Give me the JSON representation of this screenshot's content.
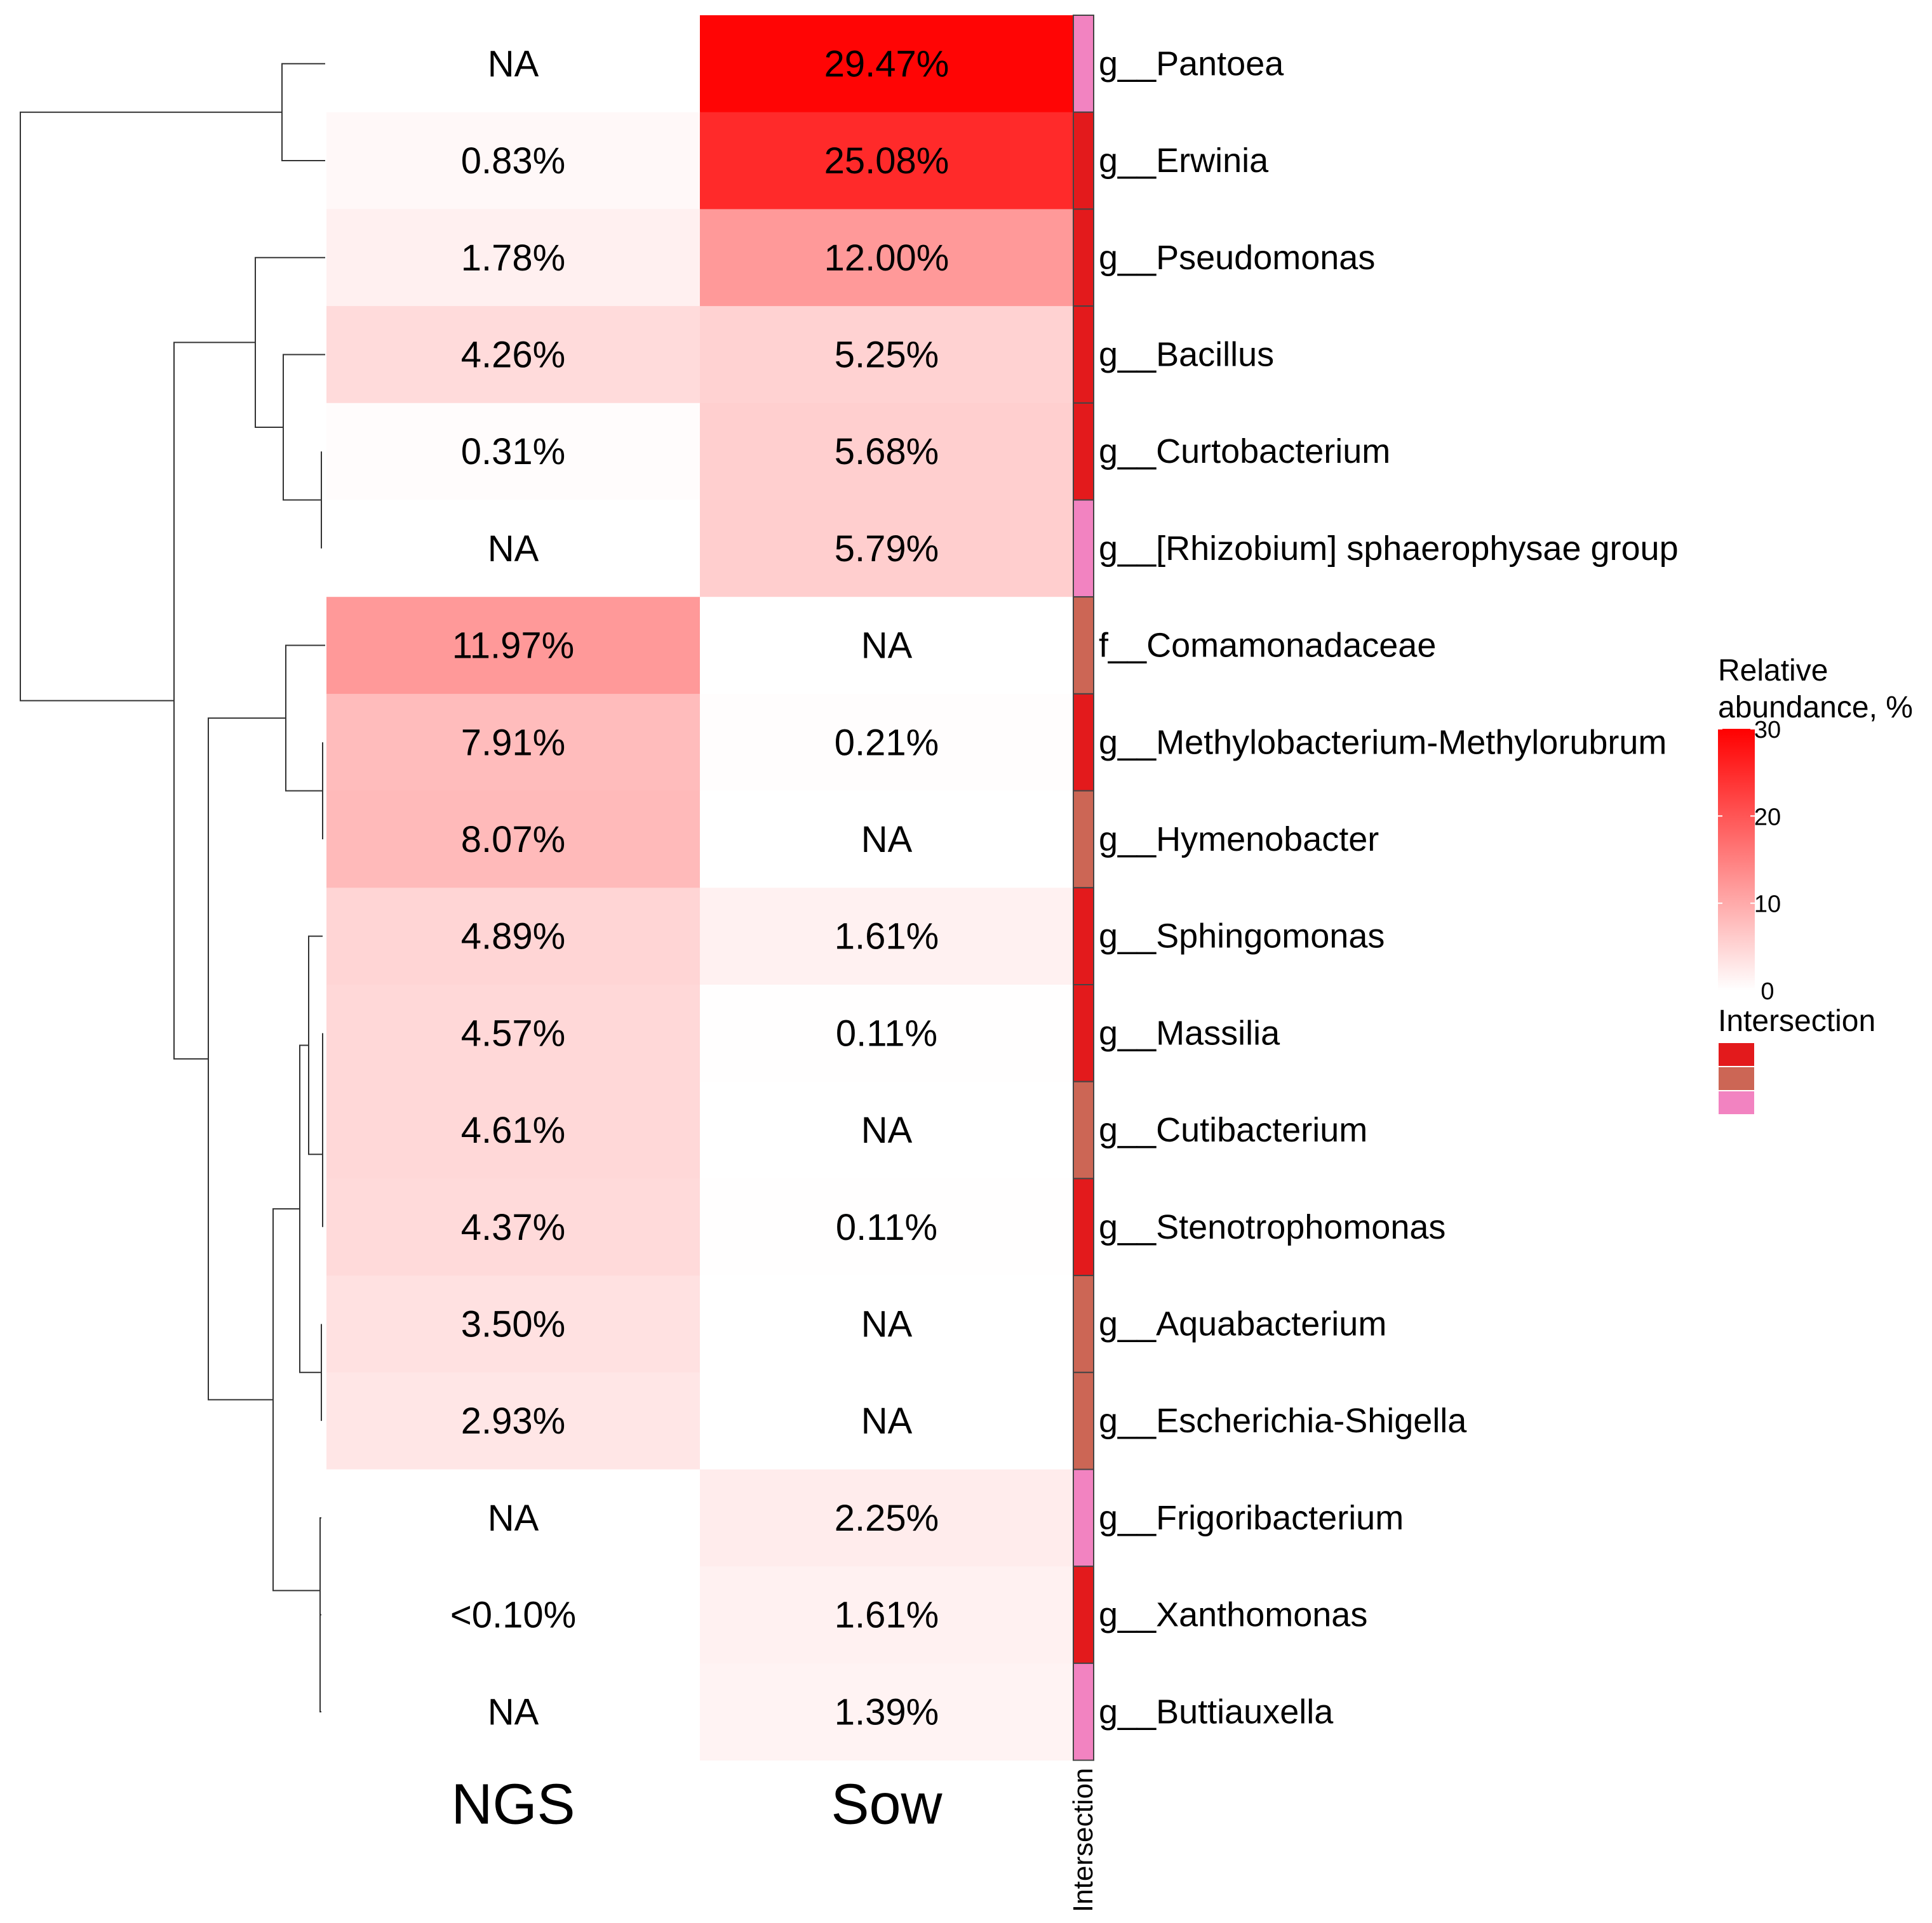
{
  "chart_data": {
    "type": "heatmap",
    "columns": [
      "NGS",
      "Sow"
    ],
    "rows": [
      "g__Pantoea",
      "g__Erwinia",
      "g__Pseudomonas",
      "g__Bacillus",
      "g__Curtobacterium",
      "g__[Rhizobium] sphaerophysae group",
      "f__Comamonadaceae",
      "g__Methylobacterium-Methylorubrum",
      "g__Hymenobacter",
      "g__Sphingomonas",
      "g__Massilia",
      "g__Cutibacterium",
      "g__Stenotrophomonas",
      "g__Aquabacterium",
      "g__Escherichia-Shigella",
      "g__Frigoribacterium",
      "g__Xanthomonas",
      "g__Buttiauxella"
    ],
    "values": [
      [
        null,
        29.47
      ],
      [
        0.83,
        25.08
      ],
      [
        1.78,
        12.0
      ],
      [
        4.26,
        5.25
      ],
      [
        0.31,
        5.68
      ],
      [
        null,
        5.79
      ],
      [
        11.97,
        null
      ],
      [
        7.91,
        0.21
      ],
      [
        8.07,
        null
      ],
      [
        4.89,
        1.61
      ],
      [
        4.57,
        0.11
      ],
      [
        4.61,
        null
      ],
      [
        4.37,
        0.11
      ],
      [
        3.5,
        null
      ],
      [
        2.93,
        null
      ],
      [
        null,
        2.25
      ],
      [
        0.05,
        1.61
      ],
      [
        null,
        1.39
      ]
    ],
    "cell_labels": [
      [
        "NA",
        "29.47%"
      ],
      [
        "0.83%",
        "25.08%"
      ],
      [
        "1.78%",
        "12.00%"
      ],
      [
        "4.26%",
        "5.25%"
      ],
      [
        "0.31%",
        "5.68%"
      ],
      [
        "NA",
        "5.79%"
      ],
      [
        "11.97%",
        "NA"
      ],
      [
        "7.91%",
        "0.21%"
      ],
      [
        "8.07%",
        "NA"
      ],
      [
        "4.89%",
        "1.61%"
      ],
      [
        "4.57%",
        "0.11%"
      ],
      [
        "4.61%",
        "NA"
      ],
      [
        "4.37%",
        "0.11%"
      ],
      [
        "3.50%",
        "NA"
      ],
      [
        "2.93%",
        "NA"
      ],
      [
        "NA",
        "2.25%"
      ],
      [
        "<0.10%",
        "1.61%"
      ],
      [
        "NA",
        "1.39%"
      ]
    ],
    "row_annotation": {
      "label": "Intersection",
      "groups": [
        3,
        1,
        1,
        1,
        1,
        3,
        2,
        1,
        2,
        1,
        1,
        2,
        1,
        2,
        2,
        3,
        1,
        3
      ],
      "group_colors": [
        "#e31a1c",
        "#cc6655",
        "#f283c1"
      ]
    },
    "color_scale": {
      "title": "Relative abundance, %",
      "min": 0,
      "max": 30,
      "ticks": [
        "0",
        "10",
        "20",
        "30"
      ],
      "colors": [
        "#ffffff",
        "#ff0000"
      ],
      "na_color": "#ffffff"
    },
    "legend_annotation_title": "Intersection",
    "dendrogram": "rows",
    "grid": false
  }
}
